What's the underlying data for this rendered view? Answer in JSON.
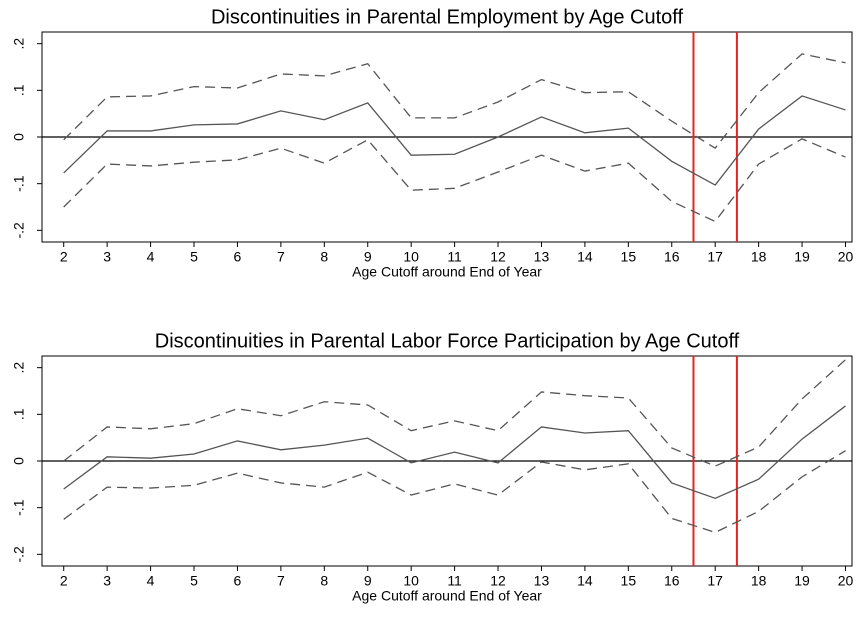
{
  "chart_data": [
    {
      "type": "line",
      "title": "Discontinuities in Parental Employment by Age Cutoff",
      "x_label": "Age Cutoff around End of Year",
      "x": [
        2,
        3,
        4,
        5,
        6,
        7,
        8,
        9,
        10,
        11,
        12,
        13,
        14,
        15,
        16,
        17,
        18,
        19,
        20
      ],
      "series": [
        {
          "color": "#555555",
          "dashed": false,
          "values": [
            -0.077,
            0.013,
            0.013,
            0.026,
            0.028,
            0.056,
            0.037,
            0.073,
            -0.039,
            -0.037,
            0,
            0.043,
            0.009,
            0.019,
            -0.052,
            -0.103,
            0.017,
            0.088,
            0.058
          ]
        },
        {
          "color": "#555555",
          "dashed": true,
          "values": [
            -0.006,
            0.086,
            0.088,
            0.108,
            0.105,
            0.135,
            0.131,
            0.157,
            0.041,
            0.041,
            0.075,
            0.123,
            0.095,
            0.097,
            0.034,
            -0.024,
            0.095,
            0.178,
            0.159
          ]
        },
        {
          "color": "#555555",
          "dashed": true,
          "values": [
            -0.15,
            -0.058,
            -0.062,
            -0.054,
            -0.049,
            -0.024,
            -0.056,
            -0.006,
            -0.114,
            -0.11,
            -0.075,
            -0.039,
            -0.073,
            -0.056,
            -0.138,
            -0.181,
            -0.058,
            -0.004,
            -0.043
          ]
        }
      ],
      "xlim": [
        1.5,
        20.15
      ],
      "xticks": [
        2,
        3,
        4,
        5,
        6,
        7,
        8,
        9,
        10,
        11,
        12,
        13,
        14,
        15,
        16,
        17,
        18,
        19,
        20
      ],
      "ylim": [
        -0.225,
        0.225
      ],
      "yticks": [
        {
          "value": -0.2,
          "label": "-.2"
        },
        {
          "value": -0.1,
          "label": "-.1"
        },
        0,
        {
          "value": 0.1,
          "label": ".1"
        },
        {
          "value": 0.2,
          "label": ".2"
        }
      ],
      "hline": 0,
      "vlines": [
        16.5,
        17.5
      ],
      "vline_color": "#e8231f"
    },
    {
      "type": "line",
      "title": "Discontinuities in Parental Labor Force Participation by Age Cutoff",
      "x_label": "Age Cutoff around End of Year",
      "x": [
        2,
        3,
        4,
        5,
        6,
        7,
        8,
        9,
        10,
        11,
        12,
        13,
        14,
        15,
        16,
        17,
        18,
        19,
        20
      ],
      "series": [
        {
          "color": "#555555",
          "dashed": false,
          "values": [
            -0.06,
            0.009,
            0.006,
            0.015,
            0.043,
            0.024,
            0.034,
            0.049,
            -0.004,
            0.019,
            -0.004,
            0.073,
            0.06,
            0.065,
            -0.047,
            -0.08,
            -0.039,
            0.047,
            0.118
          ]
        },
        {
          "color": "#555555",
          "dashed": true,
          "values": [
            0,
            0.073,
            0.069,
            0.08,
            0.112,
            0.097,
            0.127,
            0.12,
            0.065,
            0.086,
            0.065,
            0.148,
            0.14,
            0.135,
            0.028,
            -0.011,
            0.03,
            0.133,
            0.217
          ]
        },
        {
          "color": "#555555",
          "dashed": true,
          "values": [
            -0.125,
            -0.056,
            -0.058,
            -0.052,
            -0.026,
            -0.047,
            -0.056,
            -0.024,
            -0.073,
            -0.049,
            -0.073,
            -0.002,
            -0.019,
            -0.006,
            -0.123,
            -0.153,
            -0.108,
            -0.034,
            0.022
          ]
        }
      ],
      "xlim": [
        1.5,
        20.15
      ],
      "xticks": [
        2,
        3,
        4,
        5,
        6,
        7,
        8,
        9,
        10,
        11,
        12,
        13,
        14,
        15,
        16,
        17,
        18,
        19,
        20
      ],
      "ylim": [
        -0.225,
        0.225
      ],
      "yticks": [
        {
          "value": -0.2,
          "label": "-.2"
        },
        {
          "value": -0.1,
          "label": "-.1"
        },
        0,
        {
          "value": 0.1,
          "label": ".1"
        },
        {
          "value": 0.2,
          "label": ".2"
        }
      ],
      "hline": 0,
      "vlines": [
        16.5,
        17.5
      ],
      "vline_color": "#e8231f"
    }
  ]
}
